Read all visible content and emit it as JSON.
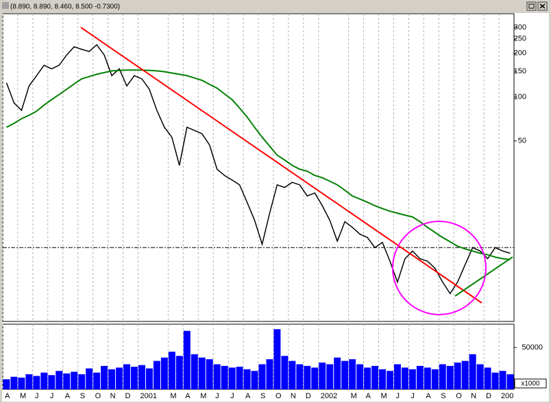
{
  "window": {
    "title": "(8.890, 8.890, 8.460, 8.500 -0.7300)"
  },
  "chart_data": {
    "type": "line",
    "log_scale": true,
    "grid": true,
    "categories": [
      "A",
      null,
      "M",
      null,
      "J",
      null,
      "J",
      null,
      "A",
      null,
      "S",
      null,
      "O",
      null,
      "N",
      null,
      "D",
      null,
      "2001",
      null,
      null,
      null,
      "M",
      null,
      "A",
      null,
      "M",
      null,
      "J",
      null,
      "J",
      null,
      "A",
      null,
      "S",
      null,
      "O",
      null,
      "N",
      null,
      "D",
      null,
      "2002",
      null,
      null,
      null,
      "M",
      null,
      "A",
      null,
      "M",
      null,
      "J",
      null,
      "J",
      null,
      "A",
      null,
      "S",
      null,
      "O",
      null,
      "N",
      null,
      "D",
      null,
      "200",
      null
    ],
    "series": [
      {
        "color": "#000000",
        "values": [
          125,
          91,
          81,
          119,
          140,
          165,
          156,
          165,
          194,
          221,
          212,
          205,
          228,
          194,
          140,
          156,
          119,
          140,
          133,
          113,
          81,
          62,
          53,
          34,
          62,
          59,
          56,
          47,
          32,
          29,
          27,
          25,
          19,
          14.3,
          9.8,
          16,
          25,
          24,
          26,
          25,
          21,
          22,
          18,
          14.3,
          10.3,
          14,
          12.8,
          11.5,
          10.9,
          9.3,
          10.1,
          7.5,
          5.4,
          7.8,
          8.8,
          7.8,
          7.5,
          6.7,
          5.4,
          4.5,
          5.4,
          7.1,
          9.3,
          8.8,
          7.8,
          9.3,
          8.8,
          8.5
        ]
      },
      {
        "color": "#008000",
        "values": [
          62,
          66,
          71,
          75,
          80,
          88,
          96,
          104,
          113,
          123,
          133,
          138,
          143,
          147,
          151,
          152,
          153,
          153,
          153,
          152,
          151,
          149,
          146,
          143,
          140,
          135,
          130,
          122,
          115,
          105,
          96,
          84,
          73,
          62,
          53,
          46,
          40,
          37,
          34,
          32,
          31,
          29,
          28,
          26.5,
          25,
          23,
          21,
          20,
          19,
          18,
          17.2,
          16.5,
          16,
          15.5,
          15.1,
          14,
          12.8,
          11.8,
          10.9,
          10.2,
          9.5,
          9.1,
          8.8,
          8.5,
          8.3,
          8.0,
          7.8,
          7.7
        ]
      }
    ],
    "ylim": [
      2.9,
      372
    ],
    "yticks": [
      300,
      250,
      200,
      150,
      100,
      50
    ],
    "reference_line": 9.3,
    "volume": {
      "color": "#0000ff",
      "unit_label": "x1000",
      "ylim": [
        0,
        78000
      ],
      "yticks": [
        50000
      ],
      "values": [
        12000,
        15000,
        14000,
        18000,
        16000,
        20000,
        17000,
        22000,
        19000,
        21000,
        18000,
        25000,
        20000,
        28000,
        24000,
        26000,
        30000,
        27000,
        29000,
        25000,
        34000,
        38000,
        45000,
        40000,
        70000,
        42000,
        38000,
        36000,
        30000,
        28000,
        26000,
        27000,
        24000,
        22000,
        30000,
        36000,
        72000,
        40000,
        34000,
        30000,
        28000,
        26000,
        32000,
        30000,
        38000,
        34000,
        36000,
        30000,
        26000,
        28000,
        24000,
        22000,
        30000,
        26000,
        24000,
        28000,
        26000,
        24000,
        30000,
        28000,
        32000,
        34000,
        42000,
        30000,
        26000,
        20000,
        22000,
        18000
      ]
    }
  }
}
